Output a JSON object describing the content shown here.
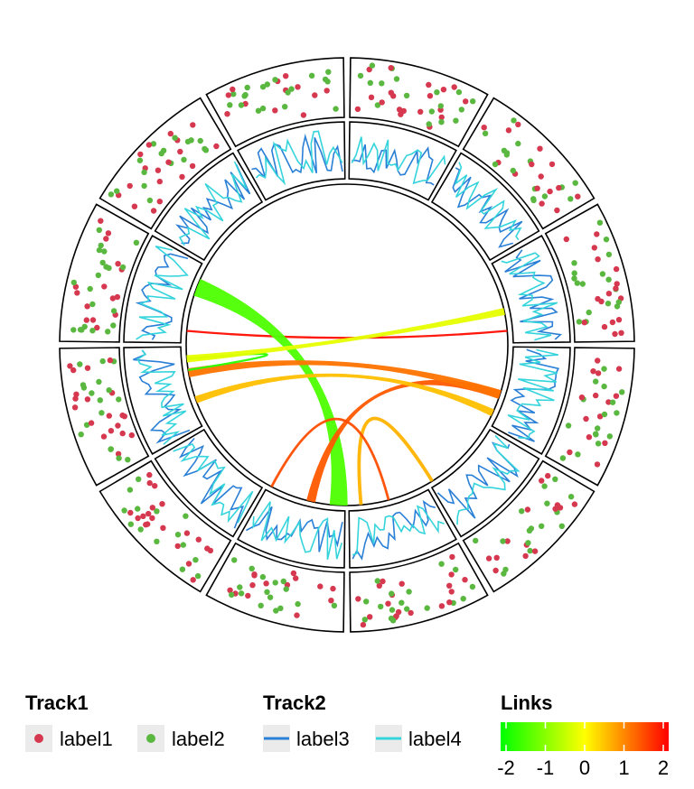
{
  "chart_data": {
    "type": "circos",
    "sectors": 12,
    "tracks": [
      {
        "name": "Track1",
        "kind": "points",
        "series": [
          {
            "name": "label1",
            "color": "#d6384f"
          },
          {
            "name": "label2",
            "color": "#5ab840"
          }
        ]
      },
      {
        "name": "Track2",
        "kind": "line",
        "series": [
          {
            "name": "label3",
            "color": "#2a7fd6"
          },
          {
            "name": "label4",
            "color": "#35d4dc"
          }
        ]
      }
    ],
    "links": {
      "title": "Links",
      "colorscale": [
        "#00ff00",
        "#ffff00",
        "#ff0000"
      ],
      "range": [
        -2,
        2
      ],
      "ticks": [
        "-2",
        "-1",
        "0",
        "1",
        "2"
      ],
      "items": [
        {
          "from_angle": 185,
          "to_angle": 355,
          "value": 1.9,
          "width": 1.5
        },
        {
          "from_angle": 93,
          "to_angle": 201,
          "value": -1.4,
          "width": 20
        },
        {
          "from_angle": 18,
          "to_angle": 103,
          "value": 1.3,
          "width": 10
        },
        {
          "from_angle": 18,
          "to_angle": 170,
          "value": 1.1,
          "width": 10
        },
        {
          "from_angle": 25,
          "to_angle": 160,
          "value": 0.5,
          "width": 8
        },
        {
          "from_angle": 58,
          "to_angle": 85,
          "value": 0.6,
          "width": 3
        },
        {
          "from_angle": 175,
          "to_angle": 171,
          "value": -1.7,
          "width": 1.5
        },
        {
          "from_angle": 75,
          "to_angle": 118,
          "value": 1.4,
          "width": 2
        },
        {
          "from_angle": 348,
          "to_angle": 175,
          "value": -0.2,
          "width": 8
        }
      ]
    }
  },
  "legend": {
    "track1": {
      "title": "Track1",
      "items": [
        "label1",
        "label2"
      ]
    },
    "track2": {
      "title": "Track2",
      "items": [
        "label3",
        "label4"
      ]
    },
    "links": {
      "title": "Links"
    }
  }
}
